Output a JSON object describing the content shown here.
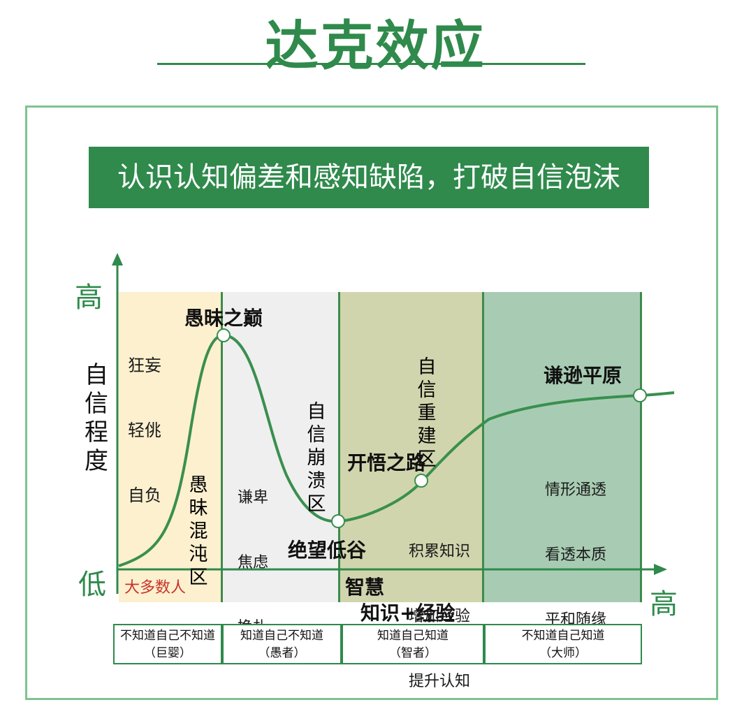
{
  "title": "达克效应",
  "banner": "认识认知偏差和感知缺陷，打破自信泡沫",
  "axes": {
    "y_label": [
      "自",
      "信",
      "程",
      "度"
    ],
    "y_high": "高",
    "y_low": "低",
    "x_high": "高",
    "x_label_1": "智慧",
    "x_label_2": "知识+经验"
  },
  "zones": {
    "z1": {
      "traits": [
        "狂妄",
        "轻佻",
        "自负"
      ],
      "name": [
        "愚",
        "昧",
        "混",
        "沌",
        "区"
      ],
      "bottom": "大多数人"
    },
    "z2": {
      "traits": [
        "谦卑",
        "焦虑",
        "挣扎"
      ],
      "name": [
        "自",
        "信",
        "崩",
        "溃",
        "区"
      ]
    },
    "z3": {
      "name": [
        "自",
        "信",
        "重",
        "建",
        "区"
      ],
      "traits": [
        "积累知识",
        "增加经验",
        "提升认知"
      ]
    },
    "z4": {
      "traits": [
        "情形通透",
        "看透本质",
        "平和随缘"
      ]
    }
  },
  "points": {
    "peak": "愚昧之巅",
    "valley": "绝望低谷",
    "path": "开悟之路",
    "plateau": "谦逊平原"
  },
  "stages": [
    {
      "line1": "不知道自己不知道",
      "line2": "（巨婴）"
    },
    {
      "line1": "知道自己不知道",
      "line2": "（愚者）"
    },
    {
      "line1": "知道自己知道",
      "line2": "（智者）"
    },
    {
      "line1": "不知道自己知道",
      "line2": "（大师）"
    }
  ],
  "colors": {
    "accent": "#2f8a4c",
    "zone1": "#fcf0cf",
    "zone2": "#efefef",
    "zone3": "#d1d5ad",
    "zone4": "#a8ccb3",
    "curve": "#3a8f4f",
    "zone1_bottom_text": "#c8342c"
  }
}
